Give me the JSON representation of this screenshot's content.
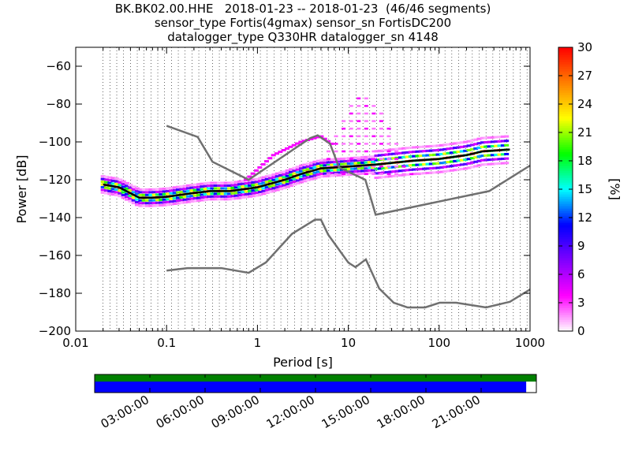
{
  "title": {
    "line1": "BK.BK02.00.HHE   2018-01-23 -- 2018-01-23  (46/46 segments)",
    "line2": "sensor_type Fortis(4gmax) sensor_sn FortisDC200",
    "line3": "datalogger_type Q330HR datalogger_sn 4148"
  },
  "chart_data": {
    "type": "heatmap",
    "xlabel": "Period [s]",
    "ylabel": "Power [dB]",
    "x_scale": "log",
    "xlim": [
      0.01,
      1000
    ],
    "ylim": [
      -200,
      -50
    ],
    "x_ticks": [
      {
        "value": 0.01,
        "label": "0.01"
      },
      {
        "value": 0.1,
        "label": "0.1"
      },
      {
        "value": 1,
        "label": "1"
      },
      {
        "value": 10,
        "label": "10"
      },
      {
        "value": 100,
        "label": "100"
      },
      {
        "value": 1000,
        "label": "1000"
      }
    ],
    "y_ticks": [
      -200,
      -180,
      -160,
      -140,
      -120,
      -100,
      -80,
      -60
    ],
    "grid": "dotted vertical lines at period bins",
    "colorbar": {
      "label": "[%]",
      "range": [
        0,
        30
      ],
      "ticks": [
        0,
        3,
        6,
        9,
        12,
        15,
        18,
        21,
        24,
        27,
        30
      ],
      "colormap": [
        "#ffffff",
        "#ff00ff",
        "#8000ff",
        "#0000ff",
        "#00ffff",
        "#00ff00",
        "#ffff00",
        "#ff8000",
        "#ff0000"
      ]
    },
    "mean_curve": {
      "color": "#000000",
      "period": [
        0.02,
        0.03,
        0.05,
        0.07,
        0.1,
        0.2,
        0.3,
        0.5,
        1,
        2,
        3,
        5,
        10,
        20,
        50,
        100,
        200,
        300,
        600
      ],
      "power": [
        -122.5,
        -124,
        -129.5,
        -129.5,
        -129,
        -127,
        -126,
        -126,
        -124,
        -120,
        -117,
        -114,
        -113,
        -112,
        -110,
        -109,
        -107,
        -105,
        -104
      ]
    },
    "noise_models": [
      {
        "name": "NHNM",
        "color": "#707070",
        "period": [
          0.1,
          0.22,
          0.32,
          0.8,
          3.8,
          4.6,
          6.3,
          7.9,
          15.4,
          20,
          354.8,
          1000
        ],
        "power": [
          -91.5,
          -97.4,
          -110.5,
          -120,
          -98,
          -96.5,
          -101,
          -113.5,
          -120,
          -138.5,
          -126,
          -112.5
        ]
      },
      {
        "name": "NLNM",
        "color": "#707070",
        "period": [
          0.1,
          0.17,
          0.4,
          0.8,
          1.24,
          2.4,
          4.3,
          5,
          6,
          10,
          12,
          15.6,
          21.9,
          31.6,
          45,
          70,
          101,
          154,
          328,
          600,
          1000
        ],
        "power": [
          -168,
          -166.7,
          -166.7,
          -169.2,
          -163.7,
          -148.6,
          -141.1,
          -141.1,
          -149,
          -163.8,
          -166.2,
          -162.1,
          -177.5,
          -185,
          -187.5,
          -187.5,
          -185,
          -185,
          -187.5,
          -184.5,
          -178
        ]
      }
    ],
    "histogram_clusters": [
      {
        "period_range": [
          0.02,
          0.05
        ],
        "power_range": [
          -131,
          -120
        ],
        "max_percent": 30
      },
      {
        "period_range": [
          0.05,
          0.2
        ],
        "power_range": [
          -131,
          -126
        ],
        "max_percent": 30
      },
      {
        "period_range": [
          0.2,
          2
        ],
        "power_range": [
          -129,
          -118
        ],
        "max_percent": 30
      },
      {
        "period_range": [
          2,
          20
        ],
        "power_range": [
          -118,
          -110
        ],
        "max_percent": 30
      },
      {
        "period_range": [
          20,
          600
        ],
        "power_range": [
          -114,
          -99
        ],
        "max_percent": 30
      },
      {
        "period_range": [
          0.7,
          10
        ],
        "power_range": [
          -120,
          -96
        ],
        "max_percent": 4
      },
      {
        "period_range": [
          5,
          80
        ],
        "power_range": [
          -118,
          -75
        ],
        "max_percent": 4
      }
    ],
    "time_axis": {
      "tick_labels": [
        "03:00:00",
        "06:00:00",
        "09:00:00",
        "12:00:00",
        "15:00:00",
        "18:00:00",
        "21:00:00"
      ],
      "tick_hours": [
        3,
        6,
        9,
        12,
        15,
        18,
        21
      ],
      "data_coverage_color": "#008000",
      "segments_coverage_color": "#0000ff",
      "segments_coverage_fraction": 0.977
    }
  }
}
